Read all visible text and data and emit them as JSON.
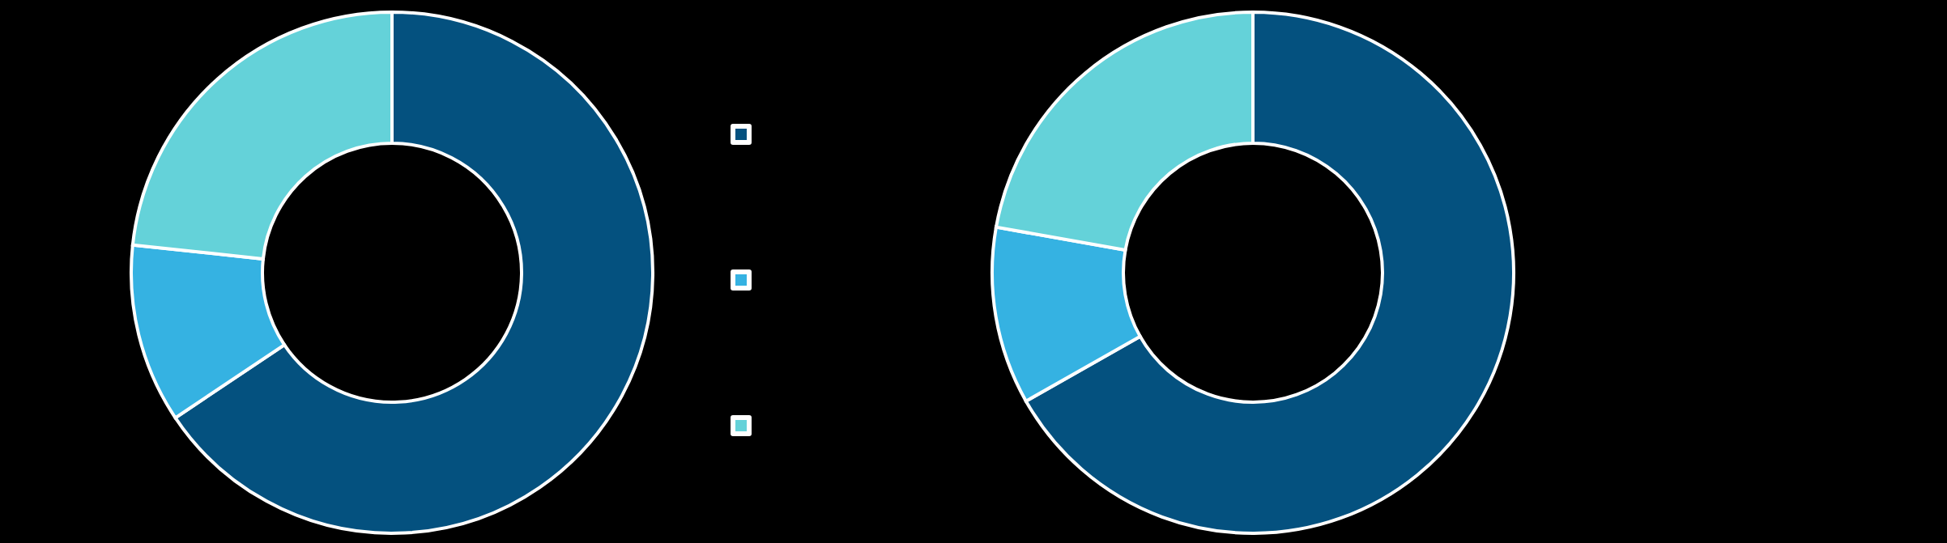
{
  "chart_data": [
    {
      "type": "donut",
      "categories": [
        null,
        null,
        null
      ],
      "values": [
        65.6,
        11.1,
        23.3
      ],
      "colors": [
        "#04517f",
        "#35b2e2",
        "#64d2d9"
      ]
    },
    {
      "type": "donut",
      "categories": [
        null,
        null,
        null
      ],
      "values": [
        66.8,
        11.0,
        22.2
      ],
      "colors": [
        "#04517f",
        "#35b2e2",
        "#64d2d9"
      ]
    }
  ]
}
